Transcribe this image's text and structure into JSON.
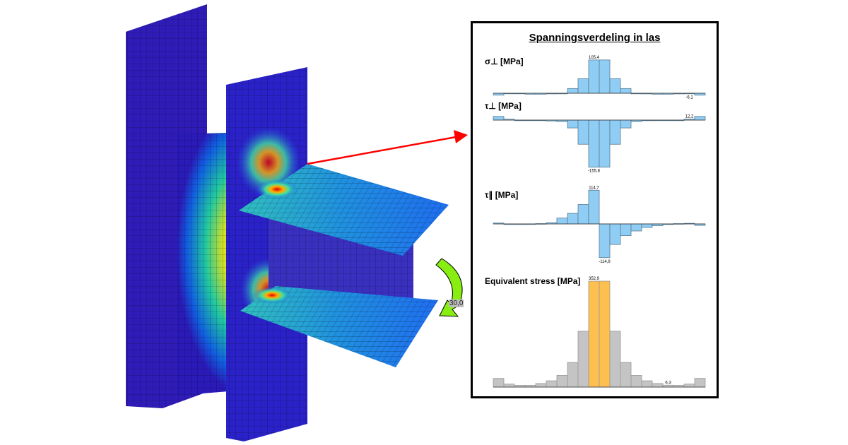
{
  "panel": {
    "title": "Spanningsverdeling in las"
  },
  "moment_label": "30,0",
  "colors": {
    "positive_fill": "#8fcdf5",
    "equivalent_fill": "#c4c4c4",
    "equivalent_highlight": "#fdbf4f",
    "arrow": "#ff0000",
    "moment_arrow": "#88ee11"
  },
  "chart_data": [
    {
      "type": "bar",
      "title": "σ⊥ [MPa]",
      "bins": 20,
      "values": [
        -6,
        -1,
        -1,
        -3,
        -3,
        -2,
        0,
        15,
        46,
        105.4,
        105.4,
        46,
        15,
        0,
        -2,
        -3,
        -3,
        -2,
        -1,
        -6.1
      ],
      "annotations": [
        {
          "bin": 10,
          "text": "105,4"
        },
        {
          "bin": 19,
          "text": "-6,1"
        }
      ]
    },
    {
      "type": "bar",
      "title": "τ⊥ [MPa]",
      "bins": 20,
      "values": [
        12.2,
        3,
        -1,
        -1,
        -1,
        -3,
        -5,
        -26,
        -80,
        -155.8,
        -155.8,
        -80,
        -26,
        -5,
        -2,
        -1,
        -1,
        0,
        3,
        12.2
      ],
      "annotations": [
        {
          "bin": 10,
          "text": "-155,8"
        },
        {
          "bin": 19,
          "text": "12,2"
        }
      ]
    },
    {
      "type": "bar",
      "title": "τ∥ [MPa]",
      "bins": 20,
      "values": [
        3,
        -1,
        -1,
        0,
        1,
        4,
        20,
        36,
        66,
        114.7,
        -114.8,
        -70,
        -40,
        -24,
        -12,
        -6,
        -1,
        1,
        2,
        -5
      ],
      "annotations": [
        {
          "bin": 10,
          "text": "114,7"
        },
        {
          "bin": 11,
          "text": "-114,8"
        }
      ]
    },
    {
      "type": "bar",
      "title": "Equivalent stress [MPa]",
      "bins": 20,
      "values": [
        29,
        10,
        6,
        6,
        12,
        21,
        39,
        82,
        186,
        352.9,
        352.9,
        186,
        82,
        39,
        21,
        12,
        6.3,
        6,
        10,
        29
      ],
      "highlight_bins": [
        10,
        11
      ],
      "annotations": [
        {
          "bin": 10,
          "text": "352,9"
        },
        {
          "bin": 17,
          "text": "6,3"
        }
      ]
    }
  ]
}
